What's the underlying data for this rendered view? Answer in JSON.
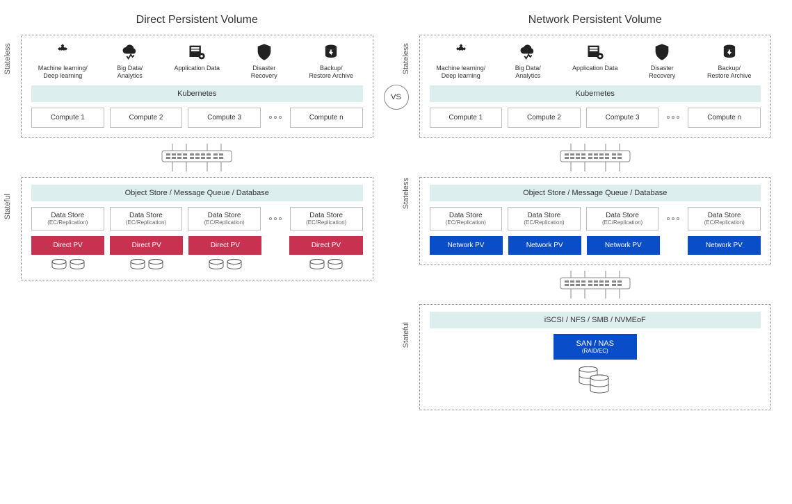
{
  "left": {
    "title": "Direct Persistent Volume",
    "sections": {
      "stateless": {
        "label": "Stateless",
        "icons": [
          {
            "name": "ml-icon",
            "label": "Machine learning/\nDeep learning"
          },
          {
            "name": "bigdata-icon",
            "label": "Big Data/\nAnalytics"
          },
          {
            "name": "appdata-icon",
            "label": "Application Data"
          },
          {
            "name": "disaster-icon",
            "label": "Disaster\nRecovery"
          },
          {
            "name": "backup-icon",
            "label": "Backup/\nRestore Archive"
          }
        ],
        "bar": "Kubernetes",
        "computes": [
          "Compute 1",
          "Compute 2",
          "Compute 3",
          "Compute n"
        ]
      },
      "stateful": {
        "label": "Stateful",
        "bar": "Object Store / Message Queue / Database",
        "datastore": {
          "title": "Data Store",
          "sub": "(EC/Replication)"
        },
        "pv_label": "Direct PV",
        "pv_color": "#c83250"
      }
    }
  },
  "right": {
    "title": "Network Persistent Volume",
    "sections": {
      "stateless_top": {
        "label": "Stateless",
        "icons": [
          {
            "name": "ml-icon",
            "label": "Machine learning/\nDeep learning"
          },
          {
            "name": "bigdata-icon",
            "label": "Big Data/\nAnalytics"
          },
          {
            "name": "appdata-icon",
            "label": "Application Data"
          },
          {
            "name": "disaster-icon",
            "label": "Disaster\nRecovery"
          },
          {
            "name": "backup-icon",
            "label": "Backup/\nRestore Archive"
          }
        ],
        "bar": "Kubernetes",
        "computes": [
          "Compute 1",
          "Compute 2",
          "Compute 3",
          "Compute n"
        ]
      },
      "stateless_mid": {
        "label": "Stateless",
        "bar": "Object Store / Message Queue / Database",
        "datastore": {
          "title": "Data Store",
          "sub": "(EC/Replication)"
        },
        "pv_label": "Network PV",
        "pv_color": "#0a4dc8"
      },
      "stateful": {
        "label": "Stateful",
        "bar": "iSCSI / NFS / SMB / NVMEoF",
        "san": {
          "title": "SAN / NAS",
          "sub": "(RAID/EC)"
        }
      }
    }
  },
  "vs": "VS",
  "colors": {
    "bar_bg": "#dceeee",
    "border": "#bbbbbb",
    "dotted": "#888888"
  }
}
